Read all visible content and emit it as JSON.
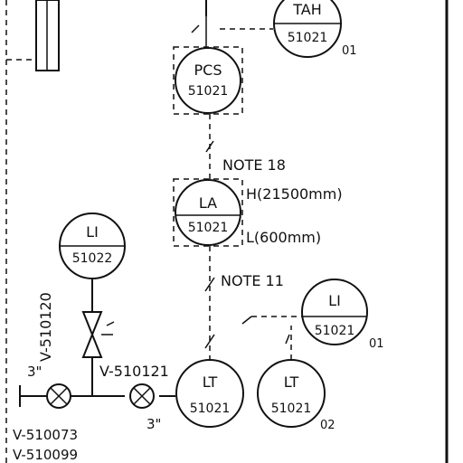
{
  "instruments": {
    "tah": {
      "top": "TAH",
      "bottom": "51021",
      "suffix": "01"
    },
    "pcs": {
      "top": "PCS",
      "bottom": "51021"
    },
    "la": {
      "top": "LA",
      "bottom": "51021"
    },
    "li_left": {
      "top": "LI",
      "bottom": "51022"
    },
    "li_right": {
      "top": "LI",
      "bottom": "51021",
      "suffix": "01"
    },
    "lt_main": {
      "top": "LT",
      "bottom": "51021"
    },
    "lt_right": {
      "top": "LT",
      "bottom": "51021",
      "suffix": "02"
    }
  },
  "notes": {
    "note18": "NOTE 18",
    "note11": "NOTE 11",
    "high_level": "H(21500mm)",
    "low_level": "L(600mm)"
  },
  "valves": {
    "v510120": "V-510120",
    "v510121": "V-510121",
    "v510073": "V-510073",
    "v510099": "V-510099"
  },
  "sizes": {
    "left_size": "3\"",
    "right_size": "3\""
  }
}
